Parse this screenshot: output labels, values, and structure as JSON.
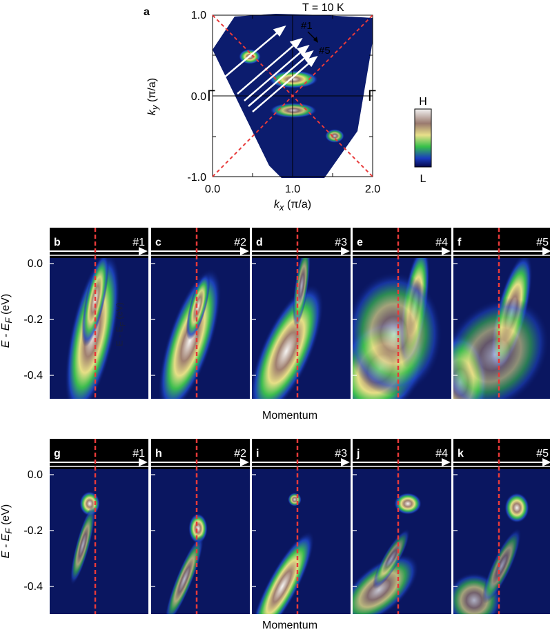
{
  "panel_a": {
    "label": "a",
    "temperature": "T = 10 K",
    "ky_label": "k",
    "ky_sub": "y",
    "ky_unit": " (π/a)",
    "kx_label": "k",
    "kx_sub": "x",
    "kx_unit": " (π/a)",
    "y_ticks": [
      "1.0",
      "0.0",
      "-1.0"
    ],
    "x_ticks": [
      "0.0",
      "1.0",
      "2.0"
    ],
    "gamma_left": "Γ",
    "gamma_right": "Γ",
    "cut_first": "#1",
    "cut_last": "#5"
  },
  "colorbar": {
    "high": "H",
    "low": "L",
    "colors": [
      "#f2f2f2",
      "#9a7a6e",
      "#e8e08a",
      "#36c04a",
      "#1a3cbf",
      "#06084a"
    ]
  },
  "row1": {
    "ylabel": "E - E",
    "ylabel_sub": "F",
    "ylabel_unit": " (eV)",
    "overlay_label": "E - E",
    "overlay_sub": "F",
    "overlay_unit": " (eV)",
    "y_ticks": [
      "0.0",
      "-0.2",
      "-0.4"
    ],
    "xlabel": "Momentum",
    "panels": [
      {
        "letter": "b",
        "cut": "#1"
      },
      {
        "letter": "c",
        "cut": "#2"
      },
      {
        "letter": "d",
        "cut": "#3"
      },
      {
        "letter": "e",
        "cut": "#4"
      },
      {
        "letter": "f",
        "cut": "#5"
      }
    ]
  },
  "row2": {
    "ylabel": "E - E",
    "ylabel_sub": "F",
    "ylabel_unit": " (eV)",
    "y_ticks": [
      "0.0",
      "-0.2",
      "-0.4"
    ],
    "xlabel": "Momentum",
    "panels": [
      {
        "letter": "g",
        "cut": "#1"
      },
      {
        "letter": "h",
        "cut": "#2"
      },
      {
        "letter": "i",
        "cut": "#3"
      },
      {
        "letter": "j",
        "cut": "#4"
      },
      {
        "letter": "k",
        "cut": "#5"
      }
    ]
  }
}
